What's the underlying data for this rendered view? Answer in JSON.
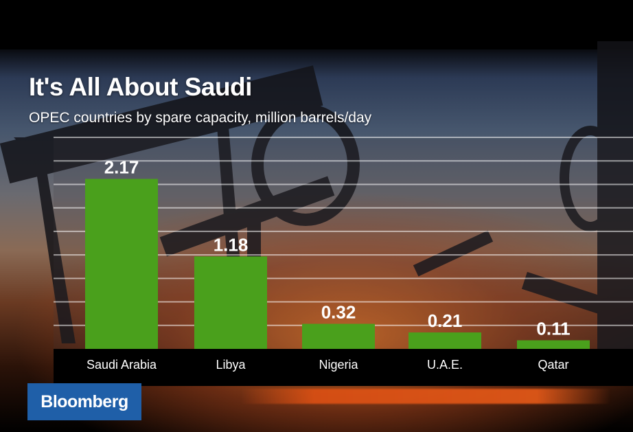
{
  "title": "It's All About Saudi",
  "subtitle": "OPEC countries by spare capacity, million barrels/day",
  "brand": "Bloomberg",
  "colors": {
    "bar": "#4aa01c",
    "brand_bg": "#1f5fa8",
    "text": "#ffffff"
  },
  "chart_data": {
    "type": "bar",
    "title": "It's All About Saudi",
    "subtitle": "OPEC countries by spare capacity, million barrels/day",
    "categories": [
      "Saudi Arabia",
      "Libya",
      "Nigeria",
      "U.A.E.",
      "Qatar"
    ],
    "values": [
      2.17,
      1.18,
      0.32,
      0.21,
      0.11
    ],
    "data_labels": [
      "2.17",
      "1.18",
      "0.32",
      "0.21",
      "0.11"
    ],
    "ylim": [
      0,
      2.7
    ],
    "grid": true,
    "xlabel": "",
    "ylabel": ""
  }
}
